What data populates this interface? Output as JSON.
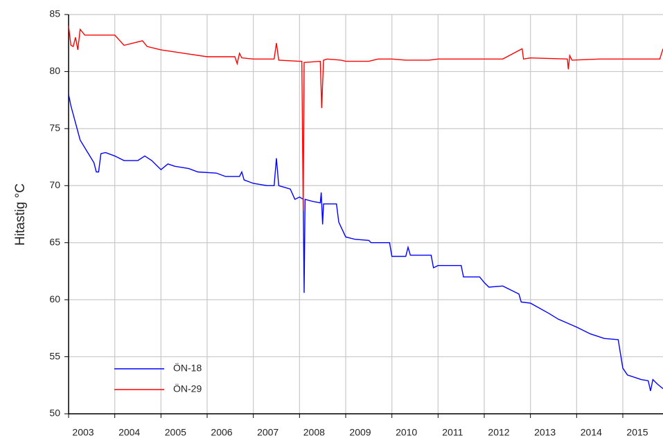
{
  "chart_data": {
    "type": "line",
    "y_label": "Hitastig °C",
    "xlim": [
      2003,
      2015.87
    ],
    "ylim": [
      50,
      85
    ],
    "xticks": [
      2003,
      2004,
      2005,
      2006,
      2007,
      2008,
      2009,
      2010,
      2011,
      2012,
      2013,
      2014,
      2015
    ],
    "yticks": [
      50,
      55,
      60,
      65,
      70,
      75,
      80,
      85
    ],
    "grid": true,
    "legend": "lower left",
    "series": [
      {
        "name": "ÖN-18",
        "color": "#0000ff",
        "x": [
          2003.0,
          2003.05,
          2003.15,
          2003.25,
          2003.4,
          2003.55,
          2003.6,
          2003.65,
          2003.7,
          2003.8,
          2004.0,
          2004.2,
          2004.5,
          2004.65,
          2004.8,
          2005.0,
          2005.15,
          2005.3,
          2005.6,
          2005.8,
          2006.2,
          2006.4,
          2006.7,
          2006.75,
          2006.8,
          2007.0,
          2007.3,
          2007.45,
          2007.5,
          2007.55,
          2007.8,
          2007.9,
          2008.0,
          2008.08,
          2008.1,
          2008.12,
          2008.3,
          2008.45,
          2008.47,
          2008.5,
          2008.52,
          2008.8,
          2008.85,
          2009.0,
          2009.2,
          2009.5,
          2009.55,
          2009.95,
          2010.0,
          2010.3,
          2010.35,
          2010.4,
          2010.85,
          2010.9,
          2011.0,
          2011.5,
          2011.55,
          2011.9,
          2012.0,
          2012.1,
          2012.4,
          2012.75,
          2012.8,
          2013.0,
          2013.4,
          2013.6,
          2014.0,
          2014.3,
          2014.6,
          2014.9,
          2015.0,
          2015.1,
          2015.4,
          2015.55,
          2015.6,
          2015.65,
          2015.75,
          2015.87
        ],
        "values": [
          78,
          77,
          75.5,
          74,
          73,
          72,
          71.2,
          71.2,
          72.8,
          72.9,
          72.6,
          72.2,
          72.2,
          72.6,
          72.2,
          71.4,
          71.9,
          71.7,
          71.5,
          71.2,
          71.1,
          70.8,
          70.8,
          71.2,
          70.5,
          70.2,
          70.0,
          70.0,
          72.4,
          70.0,
          69.7,
          68.8,
          69.0,
          68.8,
          60.6,
          68.8,
          68.6,
          68.5,
          69.4,
          66.6,
          68.4,
          68.4,
          66.8,
          65.5,
          65.3,
          65.2,
          65.0,
          65.0,
          63.8,
          63.8,
          64.6,
          63.9,
          63.9,
          62.8,
          63.0,
          63.0,
          62.0,
          62.0,
          61.5,
          61.1,
          61.2,
          60.5,
          59.8,
          59.7,
          58.8,
          58.3,
          57.6,
          57.0,
          56.6,
          56.5,
          54.0,
          53.4,
          53.0,
          52.9,
          52.0,
          53.0,
          52.6,
          52.2
        ]
      },
      {
        "name": "ÖN-29",
        "color": "#ff0000",
        "x": [
          2003.0,
          2003.05,
          2003.1,
          2003.15,
          2003.2,
          2003.25,
          2003.35,
          2004.0,
          2004.2,
          2004.5,
          2004.6,
          2004.7,
          2005.0,
          2005.5,
          2006.0,
          2006.6,
          2006.65,
          2006.7,
          2006.75,
          2007.0,
          2007.45,
          2007.5,
          2007.55,
          2008.0,
          2008.05,
          2008.08,
          2008.1,
          2008.45,
          2008.48,
          2008.52,
          2008.6,
          2008.9,
          2009.0,
          2009.5,
          2009.7,
          2010.0,
          2010.3,
          2010.8,
          2011.0,
          2011.5,
          2012.0,
          2012.4,
          2012.82,
          2012.85,
          2013.0,
          2013.8,
          2013.82,
          2013.85,
          2013.9,
          2014.5,
          2015.0,
          2015.8,
          2015.87
        ],
        "values": [
          84.0,
          82.3,
          82.2,
          83.0,
          81.9,
          83.7,
          83.2,
          83.2,
          82.3,
          82.6,
          82.7,
          82.2,
          81.9,
          81.6,
          81.3,
          81.3,
          80.7,
          81.6,
          81.2,
          81.1,
          81.1,
          82.5,
          81.0,
          80.9,
          80.9,
          67.8,
          80.8,
          80.9,
          76.8,
          81.0,
          81.1,
          81.0,
          80.9,
          80.9,
          81.1,
          81.1,
          81.0,
          81.0,
          81.1,
          81.1,
          81.1,
          81.1,
          82.0,
          81.1,
          81.2,
          81.1,
          80.2,
          81.4,
          81.0,
          81.1,
          81.1,
          81.1,
          82.0
        ]
      }
    ]
  }
}
